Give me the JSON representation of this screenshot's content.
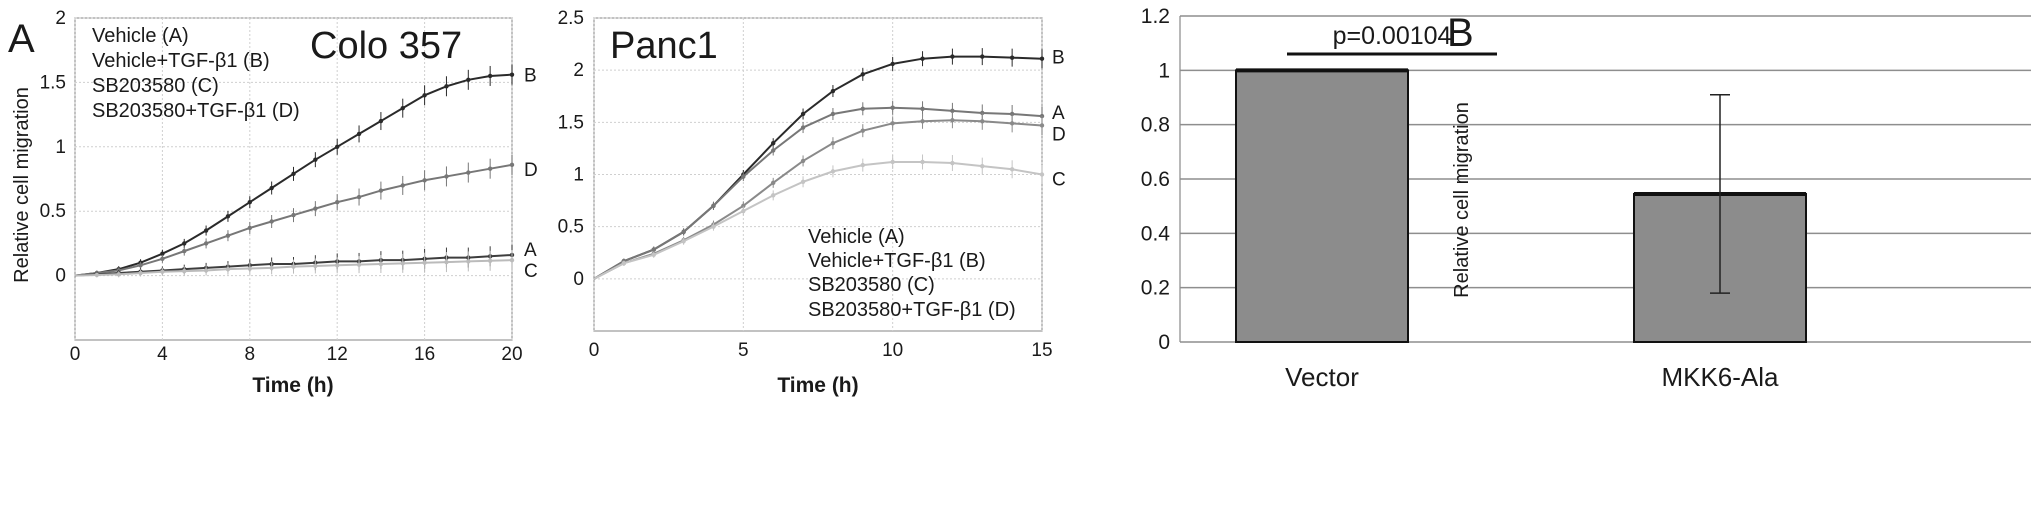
{
  "panel_labels": {
    "a": "A",
    "b": "B"
  },
  "chart_data": [
    {
      "type": "line",
      "title": "Colo 357",
      "xlabel": "Time (h)",
      "ylabel": "Relative cell migration",
      "xlim": [
        0,
        20
      ],
      "ylim": [
        -0.5,
        2
      ],
      "x_ticks": [
        "0",
        "4",
        "8",
        "12",
        "16",
        "20"
      ],
      "y_ticks": [
        "0",
        "0.5",
        "1",
        "1.5",
        "2"
      ],
      "grid": true,
      "legend": [
        "Vehicle (A)",
        "Vehicle+TGF-β1 (B)",
        "SB203580 (C)",
        "SB203580+TGF-β1 (D)"
      ],
      "legend_position": "top-left",
      "x": [
        0,
        1,
        2,
        3,
        4,
        5,
        6,
        7,
        8,
        9,
        10,
        11,
        12,
        13,
        14,
        15,
        16,
        17,
        18,
        19,
        20
      ],
      "series": [
        {
          "name": "B",
          "color": "#2a2a2a",
          "values": [
            0,
            0.02,
            0.05,
            0.1,
            0.17,
            0.25,
            0.35,
            0.46,
            0.57,
            0.68,
            0.79,
            0.9,
            1.0,
            1.1,
            1.2,
            1.3,
            1.4,
            1.47,
            1.52,
            1.55,
            1.56
          ]
        },
        {
          "name": "D",
          "color": "#777777",
          "values": [
            0,
            0.02,
            0.04,
            0.08,
            0.13,
            0.19,
            0.25,
            0.31,
            0.37,
            0.42,
            0.47,
            0.52,
            0.57,
            0.61,
            0.66,
            0.7,
            0.74,
            0.77,
            0.8,
            0.83,
            0.86
          ]
        },
        {
          "name": "A",
          "color": "#3d3d3d",
          "values": [
            0,
            0.01,
            0.02,
            0.03,
            0.04,
            0.05,
            0.06,
            0.07,
            0.08,
            0.09,
            0.09,
            0.1,
            0.11,
            0.11,
            0.12,
            0.12,
            0.13,
            0.14,
            0.14,
            0.15,
            0.16
          ]
        },
        {
          "name": "C",
          "color": "#bbbbbb",
          "values": [
            0,
            0.005,
            0.01,
            0.02,
            0.03,
            0.035,
            0.04,
            0.05,
            0.055,
            0.06,
            0.07,
            0.075,
            0.08,
            0.085,
            0.09,
            0.095,
            0.1,
            0.105,
            0.11,
            0.115,
            0.12
          ]
        }
      ]
    },
    {
      "type": "line",
      "title": "Panc1",
      "xlabel": "Time (h)",
      "ylabel": "",
      "xlim": [
        0,
        15
      ],
      "ylim": [
        -0.5,
        2.5
      ],
      "x_ticks": [
        "0",
        "5",
        "10",
        "15"
      ],
      "y_ticks": [
        "0",
        "0.5",
        "1",
        "1.5",
        "2",
        "2.5"
      ],
      "grid": true,
      "legend": [
        "Vehicle (A)",
        "Vehicle+TGF-β1 (B)",
        "SB203580 (C)",
        "SB203580+TGF-β1 (D)"
      ],
      "legend_position": "bottom-right",
      "x": [
        0,
        1,
        2,
        3,
        4,
        5,
        6,
        7,
        8,
        9,
        10,
        11,
        12,
        13,
        14,
        15
      ],
      "series": [
        {
          "name": "B",
          "color": "#2a2a2a",
          "values": [
            0,
            0.17,
            0.28,
            0.45,
            0.7,
            1.0,
            1.3,
            1.58,
            1.8,
            1.96,
            2.06,
            2.11,
            2.13,
            2.13,
            2.12,
            2.11
          ]
        },
        {
          "name": "A",
          "color": "#777777",
          "values": [
            0,
            0.17,
            0.28,
            0.45,
            0.7,
            0.98,
            1.23,
            1.45,
            1.58,
            1.63,
            1.64,
            1.63,
            1.61,
            1.59,
            1.58,
            1.56
          ]
        },
        {
          "name": "D",
          "color": "#8a8a8a",
          "values": [
            0,
            0.15,
            0.24,
            0.37,
            0.52,
            0.7,
            0.92,
            1.13,
            1.3,
            1.42,
            1.49,
            1.51,
            1.52,
            1.51,
            1.49,
            1.47
          ]
        },
        {
          "name": "C",
          "color": "#c4c4c4",
          "values": [
            0,
            0.15,
            0.23,
            0.36,
            0.5,
            0.65,
            0.8,
            0.93,
            1.03,
            1.09,
            1.12,
            1.12,
            1.11,
            1.08,
            1.05,
            1.0
          ]
        }
      ]
    },
    {
      "type": "bar",
      "title": "",
      "xlabel": "",
      "ylabel": "Relative cell migration",
      "categories": [
        "Vector",
        "MKK6-Ala"
      ],
      "values": [
        1.0,
        0.545
      ],
      "error": [
        0,
        0.365
      ],
      "ylim": [
        0,
        1.2
      ],
      "y_ticks": [
        "0",
        "0.2",
        "0.4",
        "0.6",
        "0.8",
        "1",
        "1.2"
      ],
      "grid": true,
      "bar_color": "#8c8c8c",
      "annotation": "p=0.00104"
    }
  ]
}
